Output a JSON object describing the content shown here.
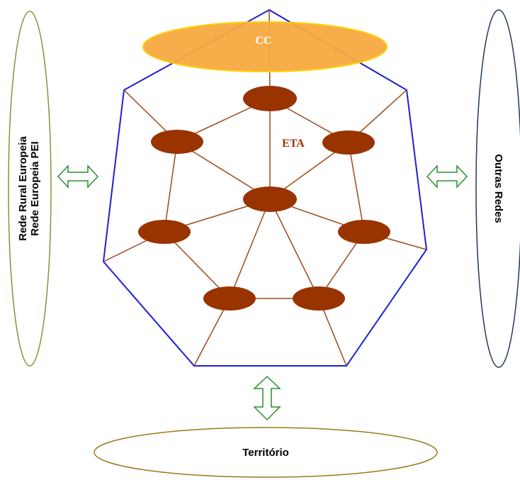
{
  "diagram": {
    "cc_label": "CC",
    "eta_label": "ETA",
    "left_network": {
      "line1": "Rede Rural Europeia",
      "line2": "Rede Europeia PEI"
    },
    "right_network": "Outras Redes",
    "territory": "Território"
  },
  "colors": {
    "outer_polygon": "#1f1fd6",
    "inner_lines": "#9a4a1a",
    "node_fill": "#993300",
    "cc_fill": "#f5a940",
    "cc_stroke": "#ffd000",
    "arrows": "#2a8f2a",
    "left_ellipse": "#7a9a3a",
    "right_ellipse": "#1f3a5f",
    "territory_ellipse": "#9a7a1a"
  }
}
